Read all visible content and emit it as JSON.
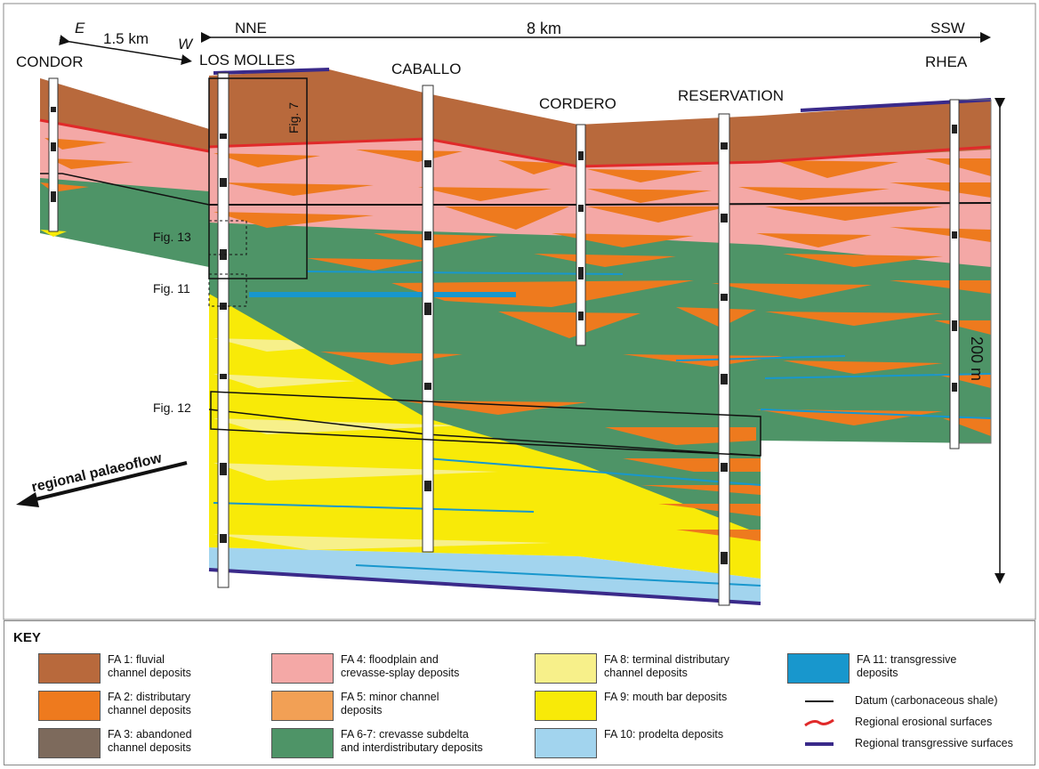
{
  "wells": {
    "condor": "CONDOR",
    "los_molles": "LOS MOLLES",
    "caballo": "CABALLO",
    "cordero": "CORDERO",
    "reservation": "RESERVATION",
    "rhea": "RHEA"
  },
  "orientation": {
    "e": "E",
    "w": "W",
    "nne": "NNE",
    "ssw": "SSW",
    "dist_small": "1.5 km",
    "dist_large": "8 km",
    "vertical_scale": "200 m"
  },
  "figure_refs": {
    "fig7": "Fig. 7",
    "fig11": "Fig. 11",
    "fig12": "Fig. 12",
    "fig13": "Fig. 13"
  },
  "palaeoflow": "regional palaeoflow",
  "key": {
    "title": "KEY",
    "items": [
      {
        "label": "FA 1: fluvial\nchannel deposits",
        "color": "#b8693c"
      },
      {
        "label": "FA 2: distributary\nchannel deposits",
        "color": "#ee7a1e"
      },
      {
        "label": "FA 3: abandoned\n channel deposits",
        "color": "#7d6a5c"
      },
      {
        "label": "FA 4: floodplain and\ncrevasse-splay deposits",
        "color": "#f4a8a6"
      },
      {
        "label": "FA 5: minor channel\ndeposits",
        "color": "#f2a055"
      },
      {
        "label": "FA 6-7: crevasse subdelta\nand interdistributary deposits",
        "color": "#4e9467"
      },
      {
        "label": "FA 8: terminal distributary\nchannel deposits",
        "color": "#f7f08a"
      },
      {
        "label": "FA 9: mouth bar deposits",
        "color": "#f8ea08"
      },
      {
        "label": "FA 10: prodelta deposits",
        "color": "#a2d4ee"
      },
      {
        "label": "FA 11: transgressive\ndeposits",
        "color": "#1897cd"
      }
    ],
    "lines": [
      {
        "label": "Datum (carbonaceous shale)",
        "color": "#111111"
      },
      {
        "label": "Regional erosional surfaces",
        "color": "#e02a2a"
      },
      {
        "label": "Regional transgressive surfaces",
        "color": "#3a2a8a"
      }
    ]
  }
}
